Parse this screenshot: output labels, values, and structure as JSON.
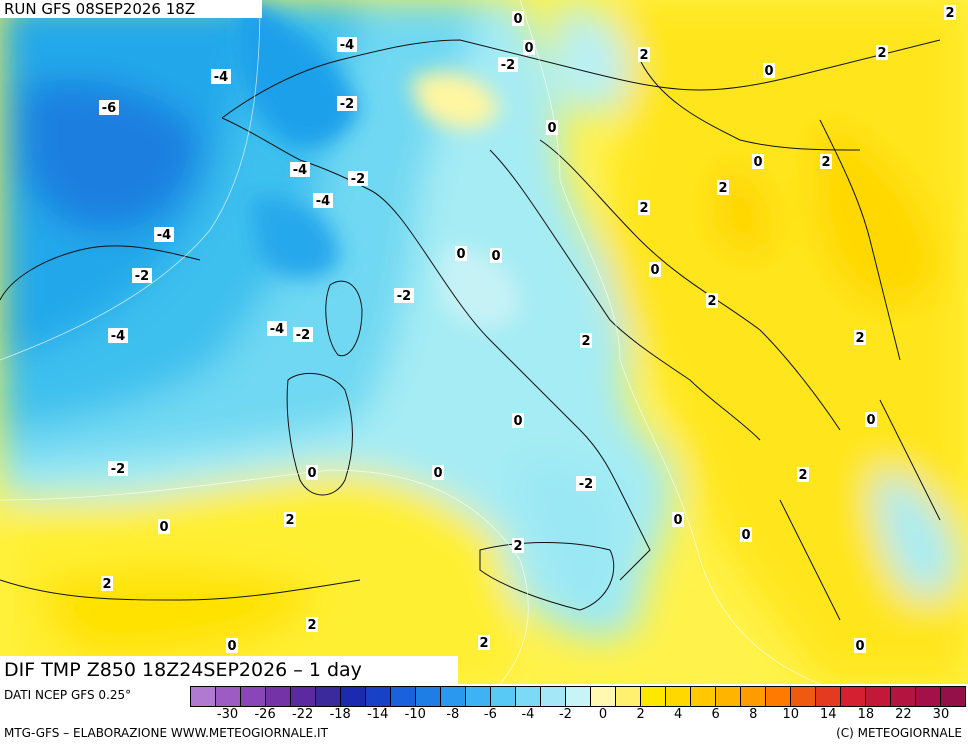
{
  "header": {
    "run_title": "RUN GFS 08SEP2026 18Z",
    "product_title": "DIF TMP Z850 18Z24SEP2026 – 1 day"
  },
  "map": {
    "region": "Italy and surrounding Mediterranean",
    "contour_labels": [
      {
        "text": "0"
      },
      {
        "text": "2"
      },
      {
        "text": "-4"
      },
      {
        "text": "0"
      },
      {
        "text": "-2"
      },
      {
        "text": "2"
      },
      {
        "text": "2"
      },
      {
        "text": "-4"
      },
      {
        "text": "0"
      },
      {
        "text": "-6"
      },
      {
        "text": "-2"
      },
      {
        "text": "0"
      },
      {
        "text": "0"
      },
      {
        "text": "2"
      },
      {
        "text": "-4"
      },
      {
        "text": "-2"
      },
      {
        "text": "2"
      },
      {
        "text": "-4"
      },
      {
        "text": "2"
      },
      {
        "text": "-4"
      },
      {
        "text": "0"
      },
      {
        "text": "0"
      },
      {
        "text": "-2"
      },
      {
        "text": "0"
      },
      {
        "text": "-2"
      },
      {
        "text": "2"
      },
      {
        "text": "-4"
      },
      {
        "text": "-4"
      },
      {
        "text": "-2"
      },
      {
        "text": "2"
      },
      {
        "text": "2"
      },
      {
        "text": "0"
      },
      {
        "text": "0"
      },
      {
        "text": "-2"
      },
      {
        "text": "0"
      },
      {
        "text": "0"
      },
      {
        "text": "-2"
      },
      {
        "text": "2"
      },
      {
        "text": "0"
      },
      {
        "text": "0"
      },
      {
        "text": "0"
      },
      {
        "text": "2"
      },
      {
        "text": "2"
      },
      {
        "text": "2"
      },
      {
        "text": "0"
      },
      {
        "text": "2"
      },
      {
        "text": "2"
      },
      {
        "text": "0"
      }
    ]
  },
  "legend": {
    "source_text": "DATI NCEP GFS 0.25°",
    "tick_labels": [
      "-30",
      "-26",
      "-22",
      "-18",
      "-14",
      "-10",
      "-8",
      "-6",
      "-4",
      "-2",
      "0",
      "2",
      "4",
      "6",
      "8",
      "10",
      "14",
      "18",
      "22",
      "30"
    ],
    "colors": [
      "#b07ad0",
      "#9c5cc4",
      "#8a45b8",
      "#7434a8",
      "#5b2aa0",
      "#3a2a9c",
      "#1c2ab0",
      "#1742c8",
      "#1a62dc",
      "#1e7ee6",
      "#2a98ee",
      "#3eb2f2",
      "#58c8f4",
      "#7cdaf6",
      "#a4e8f8",
      "#c8f4f8",
      "#fff8b0",
      "#fff070",
      "#ffe800",
      "#ffd800",
      "#ffc800",
      "#ffb400",
      "#ff9c00",
      "#ff7a00",
      "#f05a10",
      "#e43a20",
      "#d42030",
      "#c41838",
      "#b41440",
      "#a41048",
      "#941048"
    ]
  },
  "footer": {
    "left": "MTG-GFS – ELABORAZIONE WWW.METEOGIORNALE.IT",
    "right": "(C) METEOGIORNALE"
  }
}
